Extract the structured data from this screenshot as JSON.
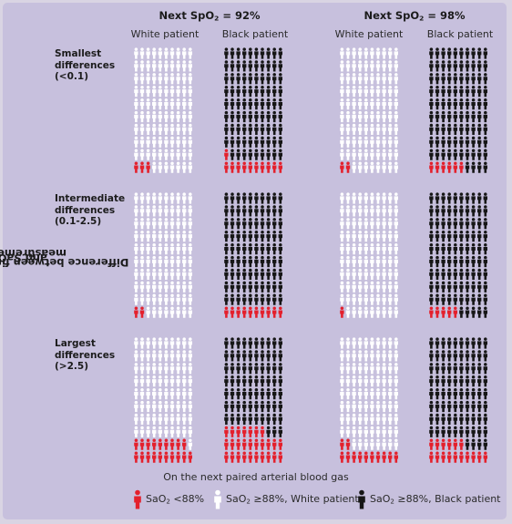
{
  "chart_data": {
    "type": "pictogram",
    "conditions": [
      {
        "label": "Next SpO",
        "sub": "2",
        "value_text": " = 92%"
      },
      {
        "label": "Next SpO",
        "sub": "2",
        "value_text": " = 98%"
      }
    ],
    "patients": [
      "White patient",
      "Black patient"
    ],
    "rows": [
      {
        "label": "Smallest\ndifferences\n(<0.1)"
      },
      {
        "label": "Intermediate\ndifferences\n(0.1-2.5)"
      },
      {
        "label": "Largest\ndifferences\n(>2.5)"
      }
    ],
    "grid": {
      "cols": 10,
      "rows": 10,
      "total": 100
    },
    "values": [
      [
        3,
        11,
        2,
        6
      ],
      [
        2,
        10,
        1,
        5
      ],
      [
        19,
        27,
        12,
        16
      ]
    ],
    "ylabel": {
      "pre": "Difference between first paired SpO",
      "sub1": "2",
      "mid": " and SaO",
      "sub2": "2",
      "post": " measurements"
    },
    "xlabel": "On the next paired arterial blood gas",
    "legend": [
      {
        "key": "red",
        "pre": "SaO",
        "sub": "2",
        "post": " <88%"
      },
      {
        "key": "white",
        "pre": "SaO",
        "sub": "2",
        "post": " ≥88%, White patient"
      },
      {
        "key": "black",
        "pre": "SaO",
        "sub": "2",
        "post": " ≥88%, Black patient"
      }
    ]
  },
  "colors": {
    "background": "#c7c0dd",
    "red": "#e4202c",
    "white": "#ffffff",
    "black": "#161616"
  }
}
